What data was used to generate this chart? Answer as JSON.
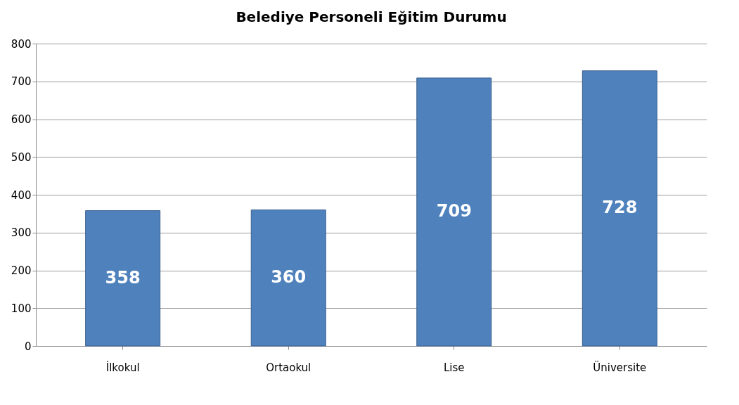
{
  "chart_data": {
    "type": "bar",
    "title": "Belediye Personeli Eğitim Durumu",
    "categories": [
      "İlkokul",
      "Ortaokul",
      "Lise",
      "Üniversite"
    ],
    "values": [
      358,
      360,
      709,
      728
    ],
    "color": "#4f81bd",
    "ylim": [
      0,
      800
    ],
    "yticks": [
      0,
      100,
      200,
      300,
      400,
      500,
      600,
      700,
      800
    ],
    "grid": "y",
    "data_labels": true
  }
}
